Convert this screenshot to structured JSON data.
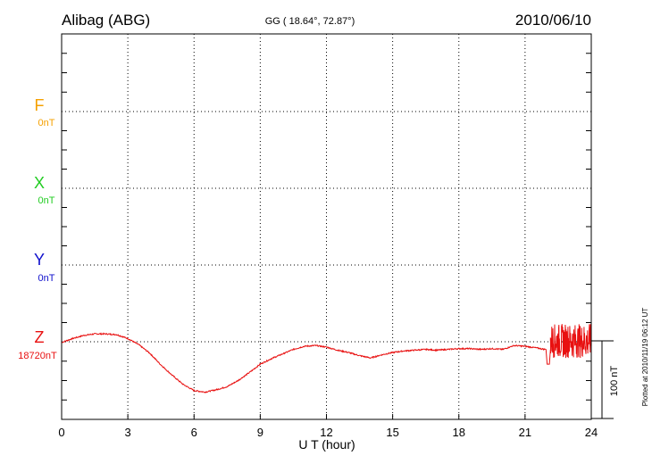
{
  "header": {
    "station": "Alibag (ABG)",
    "coords": "GG ( 18.64°,  72.87°)",
    "date": "2010/06/10"
  },
  "components": [
    {
      "name": "F",
      "baseline": "0nT",
      "color": "#f5a000"
    },
    {
      "name": "X",
      "baseline": "0nT",
      "color": "#22cc22"
    },
    {
      "name": "Y",
      "baseline": "0nT",
      "color": "#1010cc"
    },
    {
      "name": "Z",
      "baseline": "18720nT",
      "color": "#e81010"
    }
  ],
  "scale_bar_label": "100 nT",
  "plotted_note": "Plotted at 2010/11/19 06:12 UT",
  "chart_data": {
    "type": "line",
    "title": "Alibag (ABG)",
    "xlabel": "U T (hour)",
    "ylabel": "",
    "xlim": [
      0,
      24
    ],
    "x_ticks": [
      "0",
      "3",
      "6",
      "9",
      "12",
      "15",
      "18",
      "21",
      "24"
    ],
    "grid": true,
    "series": [
      {
        "name": "Z",
        "color": "#e81010",
        "x": [
          0,
          0.5,
          1.0,
          1.5,
          2.0,
          2.5,
          3.0,
          3.5,
          4.0,
          4.5,
          5.0,
          5.5,
          6.0,
          6.5,
          7.0,
          7.5,
          8.0,
          8.5,
          9.0,
          9.5,
          10.0,
          10.5,
          11.0,
          11.5,
          12.0,
          12.5,
          13.0,
          13.5,
          14.0,
          14.5,
          15.0,
          15.5,
          16.0,
          16.5,
          17.0,
          17.5,
          18.0,
          18.5,
          19.0,
          19.5,
          20.0,
          20.5,
          21.0,
          21.5,
          21.9
        ],
        "values": [
          18718,
          18723,
          18727,
          18729,
          18729,
          18728,
          18723,
          18715,
          18704,
          18689,
          18676,
          18664,
          18656,
          18654,
          18657,
          18661,
          18669,
          18679,
          18690,
          18697,
          18703,
          18709,
          18713,
          18714,
          18712,
          18708,
          18705,
          18701,
          18698,
          18702,
          18705,
          18707,
          18708,
          18709,
          18708,
          18709,
          18710,
          18710,
          18709,
          18710,
          18709,
          18714,
          18713,
          18711,
          18709
        ]
      }
    ],
    "z_step": {
      "x": [
        21.95,
        22.0,
        22.1,
        22.15
      ],
      "values": [
        18709,
        18690,
        18690,
        18709
      ]
    },
    "z_noise": {
      "x_start": 22.15,
      "x_end": 24.0,
      "center": 18720,
      "amplitude": 22
    }
  }
}
